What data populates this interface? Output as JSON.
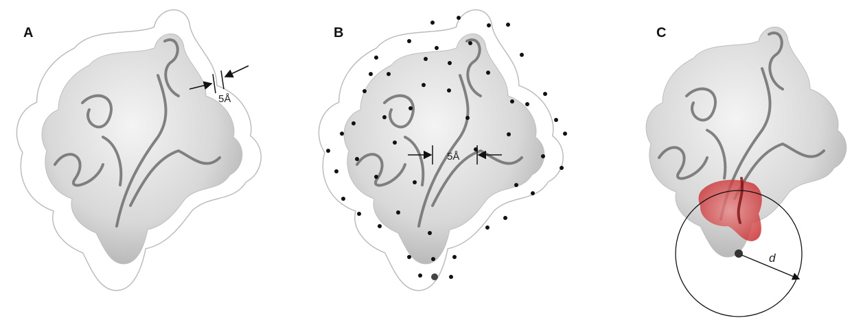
{
  "panels": [
    {
      "label": "A",
      "annotation": "5Å"
    },
    {
      "label": "B",
      "annotation": "5Å"
    },
    {
      "label": "C",
      "annotation": "d"
    }
  ]
}
